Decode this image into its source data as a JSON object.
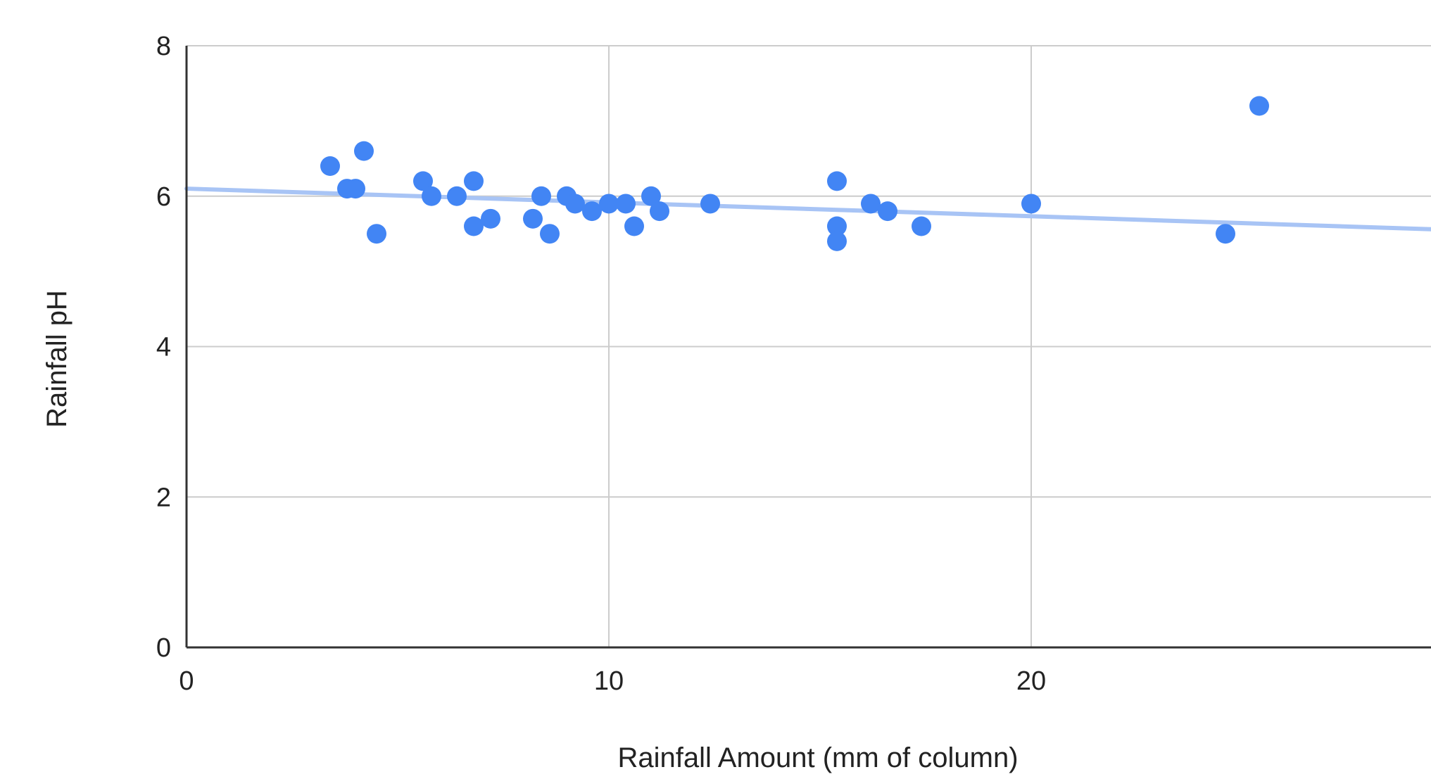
{
  "chart_data": {
    "type": "scatter",
    "title": "",
    "xlabel": "Rainfall Amount (mm of column)",
    "ylabel": "Rainfall pH",
    "xlim": [
      0,
      30
    ],
    "ylim": [
      0,
      8
    ],
    "x_ticks": [
      0,
      10,
      20
    ],
    "y_ticks": [
      0,
      2,
      4,
      6,
      8
    ],
    "grid": true,
    "legend": "none",
    "colors": {
      "points": "#4285f4",
      "trendline": "#a8c4f5",
      "grid": "#cccccc",
      "axis": "#333333"
    },
    "trendline": {
      "type": "linear",
      "from": [
        0,
        6.1
      ],
      "to": [
        30,
        5.55
      ]
    },
    "series": [
      {
        "points": [
          [
            3.4,
            6.4
          ],
          [
            3.8,
            6.1
          ],
          [
            4.0,
            6.1
          ],
          [
            4.2,
            6.6
          ],
          [
            4.5,
            5.5
          ],
          [
            5.6,
            6.2
          ],
          [
            5.8,
            6.0
          ],
          [
            6.4,
            6.0
          ],
          [
            6.8,
            6.2
          ],
          [
            6.8,
            5.6
          ],
          [
            7.2,
            5.7
          ],
          [
            8.2,
            5.7
          ],
          [
            8.4,
            6.0
          ],
          [
            8.6,
            5.5
          ],
          [
            9.0,
            6.0
          ],
          [
            9.2,
            5.9
          ],
          [
            9.6,
            5.8
          ],
          [
            10.0,
            5.9
          ],
          [
            10.4,
            5.9
          ],
          [
            10.6,
            5.6
          ],
          [
            11.0,
            6.0
          ],
          [
            11.2,
            5.8
          ],
          [
            12.4,
            5.9
          ],
          [
            15.4,
            6.2
          ],
          [
            15.4,
            5.6
          ],
          [
            15.4,
            5.4
          ],
          [
            16.2,
            5.9
          ],
          [
            16.6,
            5.8
          ],
          [
            17.4,
            5.6
          ],
          [
            20.0,
            5.9
          ],
          [
            24.6,
            5.5
          ],
          [
            25.4,
            7.2
          ]
        ]
      }
    ]
  }
}
